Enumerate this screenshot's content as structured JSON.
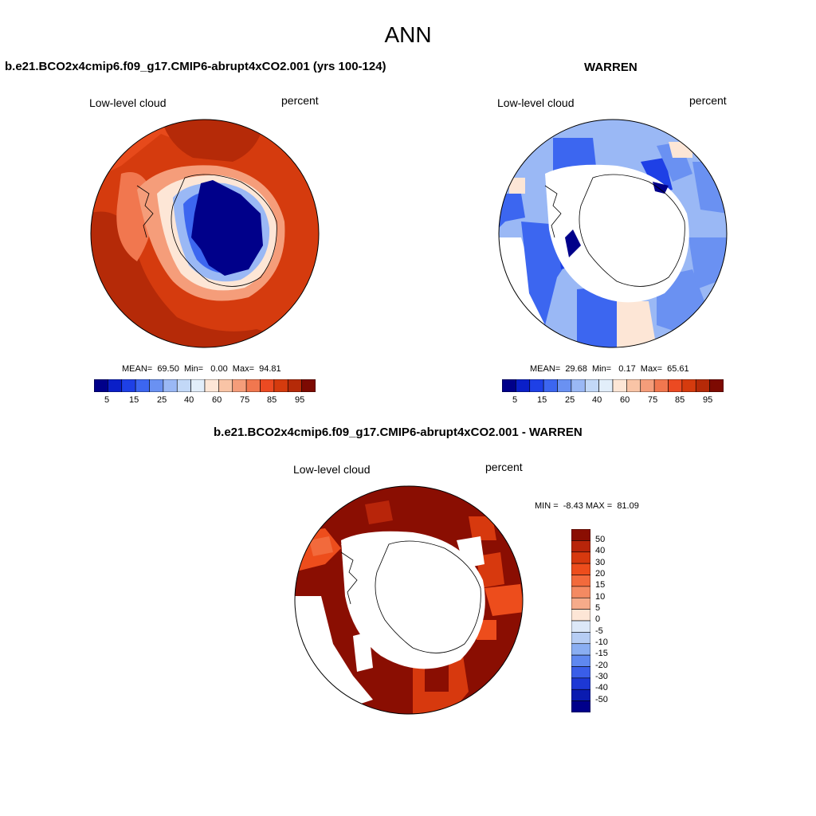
{
  "page_title": "ANN",
  "panels": [
    {
      "title": "b.e21.BCO2x4cmip6.f09_g17.CMIP6-abrupt4xCO2.001 (yrs 100-124)",
      "variable": "Low-level cloud",
      "units": "percent",
      "stats": "MEAN=  69.50  Min=   0.00  Max=  94.81",
      "colorbar_labels": [
        "5",
        "15",
        "25",
        "40",
        "60",
        "75",
        "85",
        "95"
      ]
    },
    {
      "title": "WARREN",
      "variable": "Low-level cloud",
      "units": "percent",
      "stats": "MEAN=  29.68  Min=   0.17  Max=  65.61",
      "colorbar_labels": [
        "5",
        "15",
        "25",
        "40",
        "60",
        "75",
        "85",
        "95"
      ]
    },
    {
      "title": "b.e21.BCO2x4cmip6.f09_g17.CMIP6-abrupt4xCO2.001 - WARREN",
      "variable": "Low-level cloud",
      "units": "percent",
      "minmax": "MIN =  -8.43 MAX =  81.09",
      "colorbar_labels": [
        "50",
        "40",
        "30",
        "20",
        "15",
        "10",
        "5",
        "0",
        "-5",
        "-10",
        "-15",
        "-20",
        "-30",
        "-40",
        "-50"
      ]
    }
  ],
  "colors": {
    "abs_scale": [
      "#00008a",
      "#0a1fc8",
      "#1e40e6",
      "#3c66f0",
      "#6a91f2",
      "#9ab8f5",
      "#c2d8f7",
      "#e2eefa",
      "#fde6d6",
      "#f9c4a6",
      "#f59d7a",
      "#f1774f",
      "#ec4a22",
      "#d53b0e",
      "#b52a08",
      "#7d0a02"
    ],
    "diff_scale": [
      "#8a0e02",
      "#b8250a",
      "#d7390e",
      "#ed4d1c",
      "#f26a3c",
      "#f48a62",
      "#f6ab8a",
      "#fde6d6",
      "#dce8f8",
      "#b6cdf4",
      "#8aaef2",
      "#5f88f0",
      "#3a5ee8",
      "#1d38d5",
      "#0a1bb0",
      "#00008a"
    ]
  }
}
